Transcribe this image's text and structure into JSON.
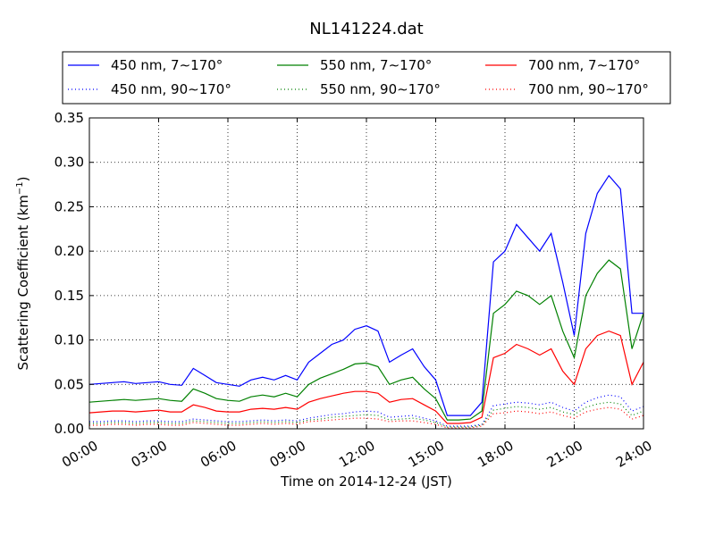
{
  "chart_data": {
    "type": "line",
    "title": "NL141224.dat",
    "xlabel": "Time on 2014-12-24 (JST)",
    "ylabel": "Scattering Coefficient (km",
    "ylabel_sup": "−1",
    "ylabel_tail": ")",
    "xlim_hours": [
      0,
      24
    ],
    "ylim": [
      0,
      0.35
    ],
    "x_ticks": [
      "00:00",
      "03:00",
      "06:00",
      "09:00",
      "12:00",
      "15:00",
      "18:00",
      "21:00",
      "24:00"
    ],
    "y_ticks": [
      "0.00",
      "0.05",
      "0.10",
      "0.15",
      "0.20",
      "0.25",
      "0.30",
      "0.35"
    ],
    "grid": true,
    "legend_position": "top, above plot",
    "x_hours": [
      0,
      0.5,
      1,
      1.5,
      2,
      2.5,
      3,
      3.5,
      4,
      4.5,
      5,
      5.5,
      6,
      6.5,
      7,
      7.5,
      8,
      8.5,
      9,
      9.5,
      10,
      10.5,
      11,
      11.5,
      12,
      12.5,
      13,
      13.5,
      14,
      14.5,
      15,
      15.5,
      16,
      16.5,
      17,
      17.5,
      18,
      18.5,
      19,
      19.5,
      20,
      20.5,
      21,
      21.5,
      22,
      22.5,
      23,
      23.5,
      24
    ],
    "series": [
      {
        "name": "450 nm, 7∼170°",
        "color": "#0000ff",
        "style": "solid",
        "values": [
          0.05,
          0.051,
          0.052,
          0.053,
          0.051,
          0.052,
          0.053,
          0.05,
          0.049,
          0.068,
          0.06,
          0.052,
          0.05,
          0.048,
          0.055,
          0.058,
          0.055,
          0.06,
          0.055,
          0.075,
          0.085,
          0.095,
          0.1,
          0.112,
          0.116,
          0.11,
          0.075,
          0.083,
          0.09,
          0.07,
          0.055,
          0.015,
          0.015,
          0.015,
          0.03,
          0.188,
          0.2,
          0.23,
          0.215,
          0.2,
          0.22,
          0.165,
          0.105,
          0.22,
          0.265,
          0.285,
          0.27,
          0.13,
          0.13
        ]
      },
      {
        "name": "550 nm, 7∼170°",
        "color": "#008000",
        "style": "solid",
        "values": [
          0.03,
          0.031,
          0.032,
          0.033,
          0.032,
          0.033,
          0.034,
          0.032,
          0.031,
          0.045,
          0.04,
          0.034,
          0.032,
          0.031,
          0.036,
          0.038,
          0.036,
          0.04,
          0.036,
          0.05,
          0.057,
          0.062,
          0.067,
          0.073,
          0.074,
          0.07,
          0.05,
          0.055,
          0.058,
          0.045,
          0.034,
          0.01,
          0.01,
          0.011,
          0.02,
          0.13,
          0.14,
          0.155,
          0.15,
          0.14,
          0.15,
          0.11,
          0.08,
          0.15,
          0.175,
          0.19,
          0.18,
          0.09,
          0.13
        ]
      },
      {
        "name": "700 nm, 7∼170°",
        "color": "#ff0000",
        "style": "solid",
        "values": [
          0.018,
          0.019,
          0.02,
          0.02,
          0.019,
          0.02,
          0.021,
          0.019,
          0.019,
          0.027,
          0.024,
          0.02,
          0.019,
          0.019,
          0.022,
          0.023,
          0.022,
          0.024,
          0.022,
          0.03,
          0.034,
          0.037,
          0.04,
          0.042,
          0.042,
          0.04,
          0.03,
          0.033,
          0.034,
          0.027,
          0.02,
          0.006,
          0.006,
          0.007,
          0.013,
          0.08,
          0.085,
          0.095,
          0.09,
          0.083,
          0.09,
          0.065,
          0.05,
          0.09,
          0.105,
          0.11,
          0.105,
          0.05,
          0.075
        ]
      },
      {
        "name": "450 nm, 90∼170°",
        "color": "#0000ff",
        "style": "dotted",
        "values": [
          0.008,
          0.008,
          0.009,
          0.009,
          0.008,
          0.009,
          0.009,
          0.008,
          0.008,
          0.011,
          0.01,
          0.009,
          0.008,
          0.008,
          0.009,
          0.01,
          0.009,
          0.01,
          0.009,
          0.012,
          0.014,
          0.016,
          0.017,
          0.019,
          0.02,
          0.019,
          0.013,
          0.014,
          0.015,
          0.012,
          0.009,
          0.003,
          0.003,
          0.003,
          0.005,
          0.026,
          0.028,
          0.03,
          0.029,
          0.027,
          0.03,
          0.024,
          0.02,
          0.03,
          0.035,
          0.038,
          0.036,
          0.02,
          0.025
        ]
      },
      {
        "name": "550 nm, 90∼170°",
        "color": "#008000",
        "style": "dotted",
        "values": [
          0.006,
          0.006,
          0.007,
          0.007,
          0.006,
          0.007,
          0.007,
          0.006,
          0.006,
          0.009,
          0.008,
          0.007,
          0.006,
          0.006,
          0.007,
          0.008,
          0.007,
          0.008,
          0.007,
          0.01,
          0.011,
          0.013,
          0.014,
          0.015,
          0.016,
          0.015,
          0.01,
          0.011,
          0.012,
          0.01,
          0.007,
          0.002,
          0.002,
          0.002,
          0.004,
          0.021,
          0.023,
          0.025,
          0.024,
          0.022,
          0.024,
          0.019,
          0.016,
          0.024,
          0.028,
          0.03,
          0.028,
          0.015,
          0.02
        ]
      },
      {
        "name": "700 nm, 90∼170°",
        "color": "#ff0000",
        "style": "dotted",
        "values": [
          0.004,
          0.004,
          0.005,
          0.005,
          0.004,
          0.005,
          0.005,
          0.004,
          0.004,
          0.007,
          0.006,
          0.005,
          0.004,
          0.004,
          0.005,
          0.006,
          0.005,
          0.006,
          0.005,
          0.008,
          0.009,
          0.01,
          0.011,
          0.012,
          0.012,
          0.011,
          0.008,
          0.009,
          0.009,
          0.007,
          0.005,
          0.001,
          0.001,
          0.001,
          0.003,
          0.017,
          0.018,
          0.02,
          0.019,
          0.017,
          0.019,
          0.015,
          0.012,
          0.019,
          0.022,
          0.024,
          0.022,
          0.011,
          0.015
        ]
      }
    ]
  }
}
